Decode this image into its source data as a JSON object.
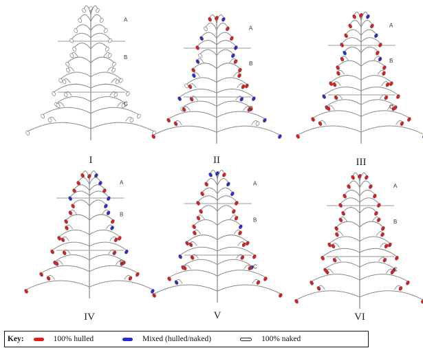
{
  "panels": [
    {
      "numeral": "I"
    },
    {
      "numeral": "II"
    },
    {
      "numeral": "III"
    },
    {
      "numeral": "IV"
    },
    {
      "numeral": "V"
    },
    {
      "numeral": "VI"
    }
  ],
  "sections": [
    "A",
    "B",
    "C"
  ],
  "key": {
    "title": "Key:",
    "items": [
      {
        "label": "100% hulled",
        "color": "#e31a1c"
      },
      {
        "label": "Mixed (hulled/naked)",
        "color": "#2b2bd6"
      },
      {
        "label": "100% naked",
        "color": "#ffffff"
      }
    ]
  },
  "colors": {
    "stem": "#8a8a8a",
    "divider": "#9a9a9a",
    "hulled": "#e31a1c",
    "mixed": "#2b2bd6"
  }
}
